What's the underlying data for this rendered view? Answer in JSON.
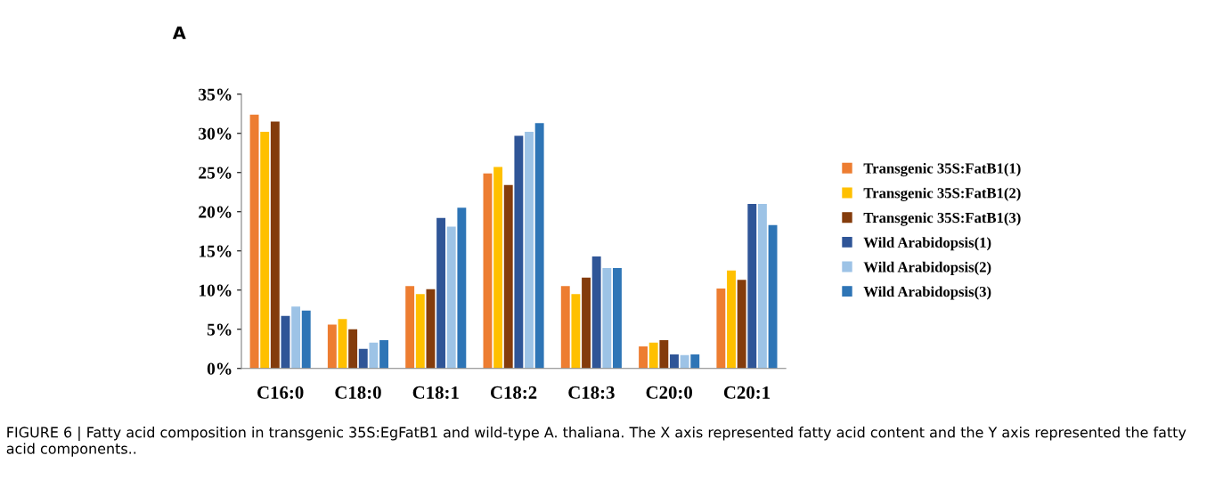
{
  "chart_data": {
    "type": "bar",
    "categories": [
      "C16:0",
      "C18:0",
      "C18:1",
      "C18:2",
      "C18:3",
      "C20:0",
      "C20:1"
    ],
    "series": [
      {
        "name": "Transgenic 35S:FatB1(1)",
        "color": "#ed7d31",
        "values": [
          32.4,
          5.6,
          10.5,
          24.9,
          10.5,
          2.8,
          10.2
        ]
      },
      {
        "name": "Transgenic 35S:FatB1(2)",
        "color": "#ffc000",
        "values": [
          30.2,
          6.3,
          9.5,
          25.7,
          9.5,
          3.3,
          12.5
        ]
      },
      {
        "name": "Transgenic 35S:FatB1(3)",
        "color": "#843c0c",
        "values": [
          31.5,
          5.0,
          10.1,
          23.4,
          11.6,
          3.6,
          11.3
        ]
      },
      {
        "name": "Wild Arabidopsis(1)",
        "color": "#2f5597",
        "values": [
          6.7,
          2.5,
          19.2,
          29.7,
          14.3,
          1.8,
          21.0
        ]
      },
      {
        "name": "Wild Arabidopsis(2)",
        "color": "#9dc3e6",
        "values": [
          7.9,
          3.3,
          18.1,
          30.2,
          12.8,
          1.7,
          21.0
        ]
      },
      {
        "name": "Wild Arabidopsis(3)",
        "color": "#2e75b6",
        "values": [
          7.4,
          3.6,
          20.5,
          31.3,
          12.8,
          1.8,
          18.3
        ]
      }
    ],
    "ylim": [
      0,
      35
    ],
    "yticks": [
      {
        "value": 0,
        "label": "0%"
      },
      {
        "value": 5,
        "label": "5%"
      },
      {
        "value": 10,
        "label": "10%"
      },
      {
        "value": 15,
        "label": "15%"
      },
      {
        "value": 20,
        "label": "20%"
      },
      {
        "value": 25,
        "label": "25%"
      },
      {
        "value": 30,
        "label": "30%"
      },
      {
        "value": 35,
        "label": "35%"
      }
    ],
    "grid": false,
    "legend": "right",
    "annotations": [
      "A",
      "FIGURE 6 | Fatty acid composition in transgenic 35S:EgFatB1 and wild-type A. thaliana. The X axis represented fatty acid content and the Y axis represented the fatty acid components.."
    ]
  }
}
